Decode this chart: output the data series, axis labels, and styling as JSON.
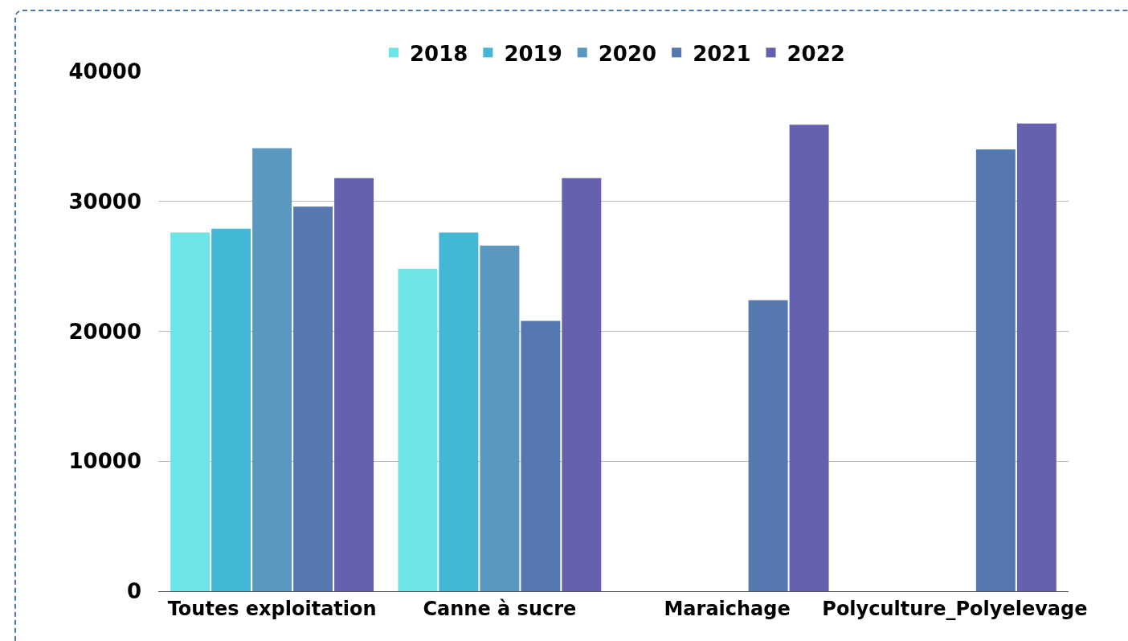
{
  "chart_data": {
    "type": "bar",
    "categories": [
      "Toutes exploitation",
      "Canne à sucre",
      "Maraichage",
      "Polyculture_Polyelevage"
    ],
    "series": [
      {
        "name": "2018",
        "color": "#6de4e8",
        "values": [
          27600,
          24800,
          null,
          null
        ]
      },
      {
        "name": "2019",
        "color": "#42b7d6",
        "values": [
          27900,
          27600,
          null,
          null
        ]
      },
      {
        "name": "2020",
        "color": "#5b98bf",
        "values": [
          34100,
          26600,
          null,
          null
        ]
      },
      {
        "name": "2021",
        "color": "#5578b0",
        "values": [
          29600,
          20800,
          22400,
          34000
        ]
      },
      {
        "name": "2022",
        "color": "#6661ae",
        "values": [
          31800,
          31800,
          35900,
          36000
        ]
      }
    ],
    "ylim": [
      0,
      40000
    ],
    "yticks": [
      0,
      10000,
      20000,
      30000,
      40000
    ],
    "grid": "y",
    "legend": "top"
  }
}
